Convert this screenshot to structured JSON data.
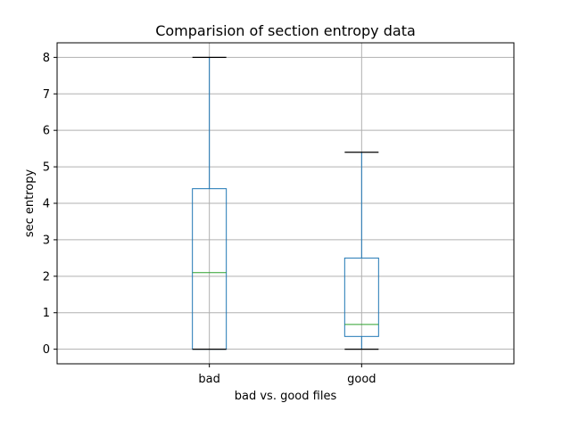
{
  "chart_data": {
    "type": "boxplot",
    "title": "Comparision of section entropy data",
    "xlabel": "bad vs. good files",
    "ylabel": "sec entropy",
    "ylim": [
      -0.4,
      8.4
    ],
    "yticks": [
      0,
      1,
      2,
      3,
      4,
      5,
      6,
      7,
      8
    ],
    "grid": true,
    "categories": [
      "bad",
      "good"
    ],
    "boxes": [
      {
        "name": "bad",
        "whisker_low": 0.0,
        "q1": 0.0,
        "median": 2.1,
        "q3": 4.4,
        "whisker_high": 8.0
      },
      {
        "name": "good",
        "whisker_low": 0.0,
        "q1": 0.35,
        "median": 0.68,
        "q3": 2.5,
        "whisker_high": 5.4
      }
    ],
    "colors": {
      "box": "#1f77b4",
      "median": "#2ca02c",
      "cap": "#000000",
      "grid": "#b0b0b0"
    }
  }
}
